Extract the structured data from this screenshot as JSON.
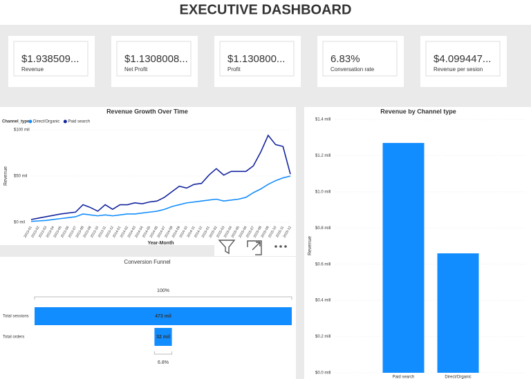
{
  "header": {
    "title": "EXECUTIVE DASHBOARD"
  },
  "kpis": [
    {
      "value": "$1.938509...",
      "label": "Revenue"
    },
    {
      "value": "$1.1308008...",
      "label": "Net Profit"
    },
    {
      "value": "$1.130800...",
      "label": "Profit"
    },
    {
      "value": "6.83%",
      "label": "Conversation rate"
    },
    {
      "value": "$4.099447...",
      "label": "Revenue per sesion"
    }
  ],
  "chart_data": [
    {
      "type": "line",
      "title": "Revenue Growth Over Time",
      "x_label": "Year-Month",
      "y_label": "Revenue",
      "legend_title": "Channel_type",
      "categories": [
        "2013-01",
        "2013-02",
        "2013-03",
        "2013-04",
        "2013-05",
        "2013-06",
        "2013-07",
        "2013-08",
        "2013-09",
        "2013-10",
        "2013-11",
        "2013-12",
        "2014-01",
        "2014-02",
        "2014-03",
        "2014-04",
        "2014-05",
        "2014-06",
        "2014-07",
        "2014-08",
        "2014-09",
        "2014-10",
        "2014-11",
        "2014-12",
        "2015-01",
        "2015-02",
        "2015-03",
        "2015-04",
        "2015-05",
        "2015-06",
        "2015-07",
        "2015-08",
        "2015-09",
        "2015-10",
        "2015-11",
        "2015-12"
      ],
      "series": [
        {
          "name": "Direct/Organic",
          "color": "#118dff",
          "values": [
            1,
            1.5,
            2,
            3,
            4,
            5,
            6,
            9,
            8,
            7,
            8,
            7,
            8,
            9,
            9,
            10,
            11,
            12,
            14,
            17,
            19,
            21,
            22,
            23,
            24,
            25,
            23,
            24,
            25,
            27,
            32,
            36,
            41,
            45,
            48,
            50
          ]
        },
        {
          "name": "Paid search",
          "color": "#12239e",
          "values": [
            3,
            4.5,
            6,
            7.5,
            9,
            10,
            11,
            19,
            16,
            12,
            19,
            14,
            19,
            19,
            21,
            20,
            22,
            23,
            27,
            33,
            39,
            37,
            41,
            42,
            51,
            58,
            51,
            55,
            55,
            55,
            61,
            76,
            94,
            84,
            82,
            52
          ]
        }
      ],
      "ylim": [
        0,
        100
      ],
      "yticks": [
        {
          "value": 0,
          "label": "$0 mil"
        },
        {
          "value": 50,
          "label": "$50 mil"
        },
        {
          "value": 100,
          "label": "$100 mil"
        }
      ]
    },
    {
      "type": "bar",
      "title": "Revenue by Channel type",
      "y_label": "Revenue",
      "categories": [
        "Paid search",
        "Direct/Organic"
      ],
      "values": [
        1.27,
        0.66
      ],
      "color": "#118dff",
      "ylim": [
        0,
        1.4
      ],
      "yticks": [
        {
          "value": 0,
          "label": "$0.0 mill"
        },
        {
          "value": 0.2,
          "label": "$0.2 mill"
        },
        {
          "value": 0.4,
          "label": "$0.4 mill"
        },
        {
          "value": 0.6,
          "label": "$0.6 mill"
        },
        {
          "value": 0.8,
          "label": "$0.8 mill"
        },
        {
          "value": 1.0,
          "label": "$1.0 mill"
        },
        {
          "value": 1.2,
          "label": "$1.2 mill"
        },
        {
          "value": 1.4,
          "label": "$1.4 mill"
        }
      ]
    },
    {
      "type": "funnel",
      "title": "Conversion Funnel",
      "categories": [
        "Total sessions",
        "Total orders"
      ],
      "values": [
        473,
        32
      ],
      "value_labels": [
        "473 mil",
        "32 mil"
      ],
      "percent_labels": [
        "100%",
        "6.8%"
      ],
      "color": "#118dff"
    }
  ]
}
